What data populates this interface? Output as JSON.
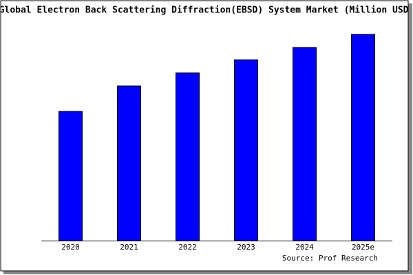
{
  "chart_data": {
    "type": "bar",
    "title": "Global Electron Back Scattering Diffraction(EBSD) System Market (Million USD)",
    "categories": [
      "2020",
      "2021",
      "2022",
      "2023",
      "2024",
      "2025e"
    ],
    "values": [
      188,
      225,
      244,
      263,
      281,
      300
    ],
    "color": "#0000ff",
    "source": "Source: Prof Research"
  }
}
